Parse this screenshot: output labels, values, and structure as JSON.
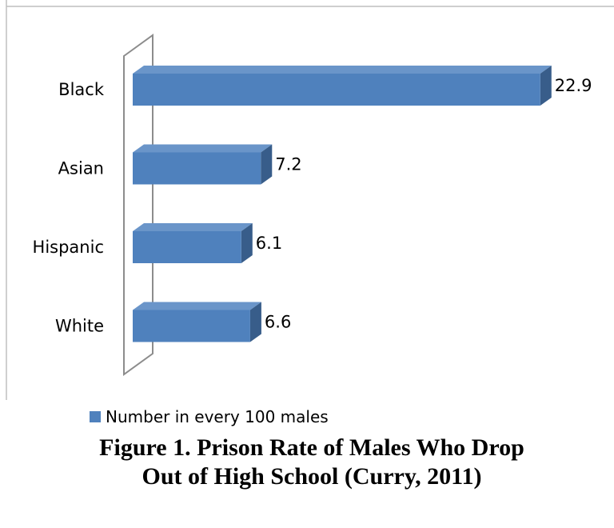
{
  "chart_data": {
    "type": "bar",
    "orientation": "horizontal",
    "style": "3d",
    "categories": [
      "Black",
      "Asian",
      "Hispanic",
      "White"
    ],
    "series": [
      {
        "name": "Number in every 100 males",
        "values": [
          22.9,
          7.2,
          6.1,
          6.6
        ]
      }
    ],
    "data_labels": [
      "22.9",
      "7.2",
      "6.1",
      "6.6"
    ],
    "xlim": [
      0,
      23
    ],
    "grid": false,
    "legend_position": "bottom-left",
    "colors": {
      "bar_front": "#4f81bd",
      "bar_top": "#6a95c9",
      "bar_side": "#385d8a",
      "wall": "#8c8c8c",
      "frame": "#bfbfbf"
    }
  },
  "legend": {
    "label": "Number in every 100 males"
  },
  "caption": {
    "line1": "Figure 1. Prison Rate of Males Who Drop",
    "line2": "Out of High School (Curry, 2011)"
  }
}
